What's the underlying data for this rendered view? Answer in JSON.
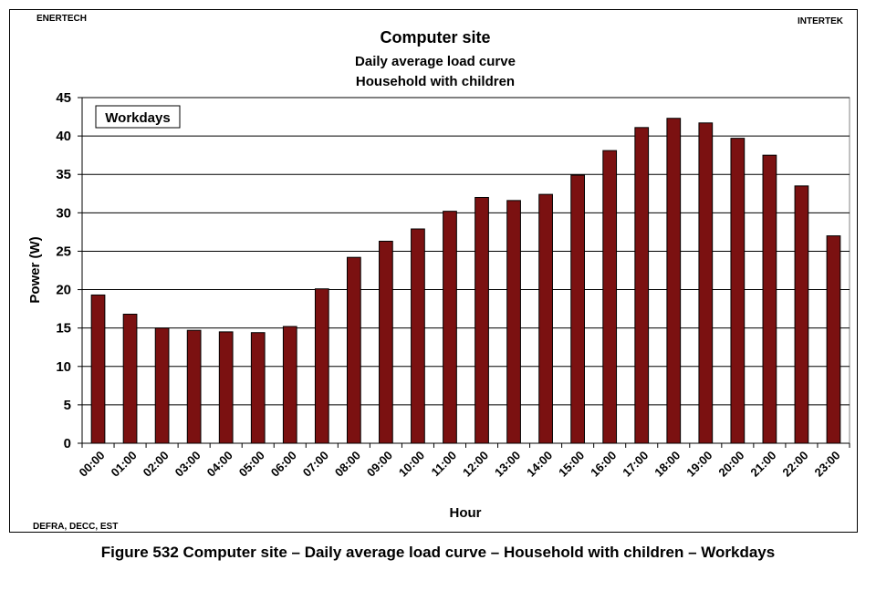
{
  "header": {
    "left": "ENERTECH",
    "right": "INTERTEK"
  },
  "footer": {
    "left": "DEFRA, DECC, EST"
  },
  "caption": "Figure 532 Computer site – Daily average load curve – Household with children – Workdays",
  "chart_data": {
    "type": "bar",
    "title": "Computer site",
    "subtitle": [
      "Daily average load curve",
      "Household with children"
    ],
    "legend_box": "Workdays",
    "xlabel": "Hour",
    "ylabel": "Power (W)",
    "ylim": [
      0,
      45
    ],
    "yticks": [
      0,
      5,
      10,
      15,
      20,
      25,
      30,
      35,
      40,
      45
    ],
    "grid": true,
    "bar_color": "#7b1111",
    "categories": [
      "00:00",
      "01:00",
      "02:00",
      "03:00",
      "04:00",
      "05:00",
      "06:00",
      "07:00",
      "08:00",
      "09:00",
      "10:00",
      "11:00",
      "12:00",
      "13:00",
      "14:00",
      "15:00",
      "16:00",
      "17:00",
      "18:00",
      "19:00",
      "20:00",
      "21:00",
      "22:00",
      "23:00"
    ],
    "values": [
      19.3,
      16.8,
      15.0,
      14.7,
      14.5,
      14.4,
      15.2,
      20.1,
      24.2,
      26.3,
      27.9,
      30.2,
      32.0,
      31.6,
      32.4,
      34.9,
      38.1,
      41.1,
      42.3,
      41.7,
      39.7,
      37.5,
      33.5,
      27.0
    ]
  }
}
